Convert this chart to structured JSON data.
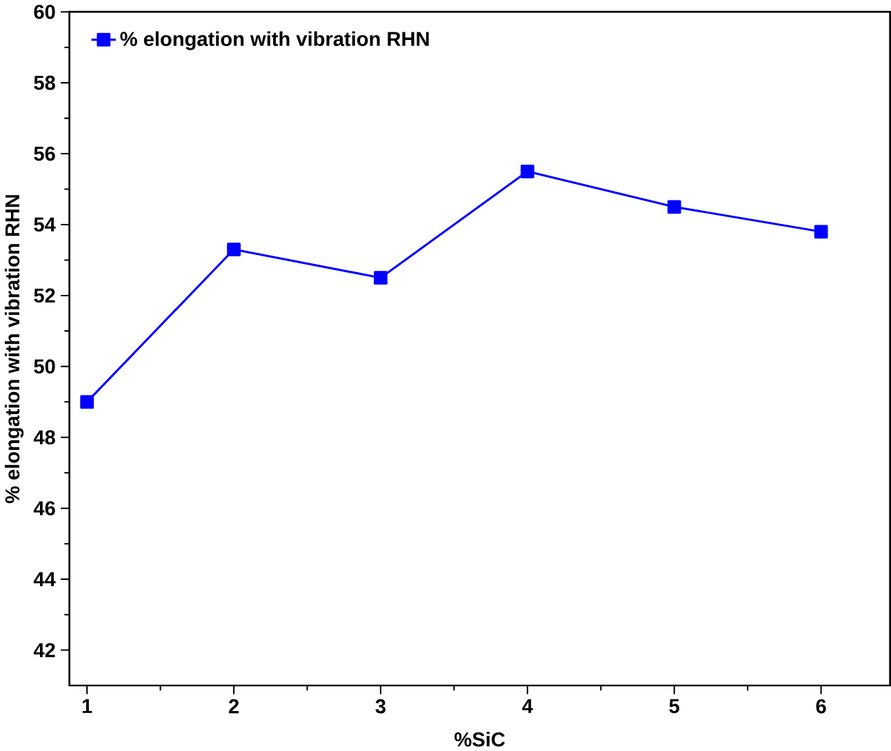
{
  "chart_data": {
    "type": "line",
    "xlabel": "%SiC",
    "ylabel": "% elongation with vibration RHN",
    "x": [
      1,
      2,
      3,
      4,
      5,
      6
    ],
    "series": [
      {
        "name": "% elongation with vibration RHN",
        "color": "#0000ff",
        "values": [
          49,
          53.3,
          52.5,
          55.5,
          54.5,
          53.8
        ]
      }
    ],
    "xlim": [
      0.88,
      6.47
    ],
    "ylim": [
      41,
      60
    ],
    "xticks": [
      1,
      2,
      3,
      4,
      5,
      6
    ],
    "yticks": [
      42,
      44,
      46,
      48,
      50,
      52,
      54,
      56,
      58,
      60
    ],
    "legend": "top left",
    "marker": "square",
    "line_style": "solid",
    "grid": false
  }
}
